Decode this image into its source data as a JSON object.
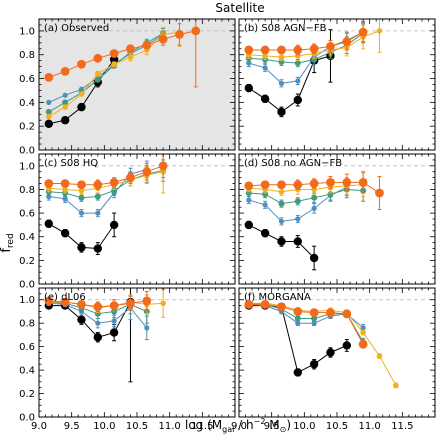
{
  "figure": {
    "title": "Satellite",
    "ylabel": "f",
    "ylabel_sub": "red",
    "xlabel_text": "log (M",
    "xlabel_sub": "gal",
    "xlabel_rest": " / h",
    "xlabel_sup": "−2",
    "xlabel_unit": " M",
    "xlabel_sun": "⊙",
    "xlabel_close": ")"
  },
  "colors": {
    "black": "#000000",
    "blue": "#4f8fbf",
    "green": "#3f9a83",
    "yellow": "#f2b01e",
    "orange": "#f26a1b",
    "shade": "#e5e5e5",
    "ref_line": "#b8b8b8"
  },
  "chart_data": [
    {
      "type": "line",
      "panel_label": "(a) Observed",
      "shaded": true,
      "xlim": [
        9.0,
        12.0
      ],
      "ylim": [
        0.0,
        1.1
      ],
      "x_ticks": [
        "9.0",
        "9.5",
        "10.0",
        "10.5",
        "11.0",
        "11.5"
      ],
      "y_ticks": [
        "0.0",
        "0.2",
        "0.4",
        "0.6",
        "0.8",
        "1.0"
      ],
      "series": [
        {
          "color": "black",
          "x": [
            9.15,
            9.4,
            9.65,
            9.9,
            10.15
          ],
          "y": [
            0.22,
            0.25,
            0.36,
            0.57,
            0.76
          ],
          "err": [
            0.02,
            0.02,
            0.02,
            0.04,
            0.07
          ]
        },
        {
          "color": "blue",
          "x": [
            9.15,
            9.4,
            9.65,
            9.9,
            10.15,
            10.4,
            10.65,
            10.9
          ],
          "y": [
            0.4,
            0.46,
            0.51,
            0.61,
            0.72,
            0.81,
            0.88,
            0.97
          ],
          "err": [
            0.01,
            0.01,
            0.01,
            0.01,
            0.01,
            0.02,
            0.03,
            0.05
          ]
        },
        {
          "color": "green",
          "x": [
            9.15,
            9.4,
            9.65,
            9.9,
            10.15,
            10.4,
            10.65,
            10.9
          ],
          "y": [
            0.32,
            0.4,
            0.48,
            0.59,
            0.71,
            0.82,
            0.9,
            0.98
          ],
          "err": [
            0.01,
            0.01,
            0.01,
            0.01,
            0.01,
            0.02,
            0.03,
            0.04
          ]
        },
        {
          "color": "yellow",
          "x": [
            9.15,
            9.4,
            9.65,
            9.9,
            10.15,
            10.4,
            10.65,
            10.9,
            11.15
          ],
          "y": [
            0.28,
            0.36,
            0.47,
            0.64,
            0.72,
            0.78,
            0.84,
            0.97,
            0.99
          ],
          "err": [
            0.01,
            0.01,
            0.01,
            0.02,
            0.02,
            0.03,
            0.04,
            0.06,
            0.12
          ]
        },
        {
          "color": "orange",
          "x": [
            9.15,
            9.4,
            9.65,
            9.9,
            10.15,
            10.4,
            10.65,
            10.9,
            11.15,
            11.4
          ],
          "y": [
            0.61,
            0.66,
            0.72,
            0.77,
            0.81,
            0.85,
            0.88,
            0.93,
            0.97,
            1.0
          ],
          "err": [
            0.02,
            0.02,
            0.02,
            0.02,
            0.02,
            0.03,
            0.03,
            0.05,
            0.09,
            0.47
          ]
        }
      ]
    },
    {
      "type": "line",
      "panel_label": "(b) S08 AGN−FB",
      "shaded": false,
      "xlim": [
        9.0,
        12.0
      ],
      "ylim": [
        0.0,
        1.1
      ],
      "x_ticks": [
        "9.0",
        "9.5",
        "10.0",
        "10.5",
        "11.0",
        "11.5"
      ],
      "y_ticks": [
        "0.0",
        "0.2",
        "0.4",
        "0.6",
        "0.8",
        "1.0"
      ],
      "series": [
        {
          "color": "black",
          "x": [
            9.15,
            9.4,
            9.65,
            9.9,
            10.15,
            10.4
          ],
          "y": [
            0.52,
            0.43,
            0.32,
            0.42,
            0.75,
            0.79
          ],
          "err": [
            0.03,
            0.03,
            0.04,
            0.05,
            0.1,
            0.22
          ]
        },
        {
          "color": "blue",
          "x": [
            9.15,
            9.4,
            9.65,
            9.9,
            10.15,
            10.4,
            10.65,
            10.9
          ],
          "y": [
            0.73,
            0.69,
            0.56,
            0.58,
            0.78,
            0.87,
            0.92,
            0.99
          ],
          "err": [
            0.03,
            0.03,
            0.03,
            0.03,
            0.04,
            0.05,
            0.07,
            0.08
          ]
        },
        {
          "color": "green",
          "x": [
            9.15,
            9.4,
            9.65,
            9.9,
            10.15,
            10.4,
            10.65,
            10.9
          ],
          "y": [
            0.77,
            0.76,
            0.74,
            0.73,
            0.76,
            0.82,
            0.88,
            0.98
          ],
          "err": [
            0.03,
            0.03,
            0.03,
            0.03,
            0.04,
            0.05,
            0.07,
            0.08
          ]
        },
        {
          "color": "yellow",
          "x": [
            9.15,
            9.4,
            9.65,
            9.9,
            10.15,
            10.4,
            10.65,
            10.9,
            11.15
          ],
          "y": [
            0.8,
            0.79,
            0.78,
            0.79,
            0.81,
            0.84,
            0.86,
            0.95,
            1.0
          ],
          "err": [
            0.03,
            0.03,
            0.03,
            0.04,
            0.04,
            0.05,
            0.07,
            0.1,
            0.18
          ]
        },
        {
          "color": "orange",
          "x": [
            9.15,
            9.4,
            9.65,
            9.9,
            10.15,
            10.4,
            10.65,
            10.9
          ],
          "y": [
            0.84,
            0.84,
            0.84,
            0.84,
            0.85,
            0.87,
            0.91,
            0.99
          ],
          "err": [
            0.03,
            0.03,
            0.03,
            0.04,
            0.04,
            0.05,
            0.07,
            0.09
          ]
        }
      ]
    },
    {
      "type": "line",
      "panel_label": "(c) S08 HQ",
      "shaded": false,
      "xlim": [
        9.0,
        12.0
      ],
      "ylim": [
        0.0,
        1.1
      ],
      "x_ticks": [
        "9.0",
        "9.5",
        "10.0",
        "10.5",
        "11.0",
        "11.5"
      ],
      "y_ticks": [
        "0.0",
        "0.2",
        "0.4",
        "0.6",
        "0.8",
        "1.0"
      ],
      "series": [
        {
          "color": "black",
          "x": [
            9.15,
            9.4,
            9.65,
            9.9,
            10.15
          ],
          "y": [
            0.51,
            0.43,
            0.31,
            0.3,
            0.5
          ],
          "err": [
            0.03,
            0.03,
            0.04,
            0.05,
            0.1
          ]
        },
        {
          "color": "blue",
          "x": [
            9.15,
            9.4,
            9.65,
            9.9,
            10.15,
            10.4,
            10.65
          ],
          "y": [
            0.74,
            0.72,
            0.6,
            0.6,
            0.77,
            0.93,
            0.97
          ],
          "err": [
            0.03,
            0.03,
            0.03,
            0.03,
            0.04,
            0.05,
            0.07
          ]
        },
        {
          "color": "green",
          "x": [
            9.15,
            9.4,
            9.65,
            9.9,
            10.15,
            10.4,
            10.65,
            10.9
          ],
          "y": [
            0.78,
            0.77,
            0.73,
            0.74,
            0.79,
            0.88,
            0.93,
            0.96
          ],
          "err": [
            0.03,
            0.03,
            0.03,
            0.03,
            0.04,
            0.05,
            0.07,
            0.09
          ]
        },
        {
          "color": "yellow",
          "x": [
            9.15,
            9.4,
            9.65,
            9.9,
            10.15,
            10.4,
            10.65,
            10.9
          ],
          "y": [
            0.81,
            0.8,
            0.79,
            0.81,
            0.84,
            0.88,
            0.92,
            0.95
          ],
          "err": [
            0.03,
            0.03,
            0.03,
            0.04,
            0.04,
            0.05,
            0.07,
            0.18
          ]
        },
        {
          "color": "orange",
          "x": [
            9.15,
            9.4,
            9.65,
            9.9,
            10.15,
            10.4,
            10.65,
            10.9
          ],
          "y": [
            0.85,
            0.85,
            0.84,
            0.84,
            0.86,
            0.9,
            0.95,
            1.0
          ],
          "err": [
            0.03,
            0.03,
            0.03,
            0.04,
            0.04,
            0.05,
            0.07,
            0.1
          ]
        }
      ]
    },
    {
      "type": "line",
      "panel_label": "(d) S08 no AGN−FB",
      "shaded": false,
      "xlim": [
        9.0,
        12.0
      ],
      "ylim": [
        0.0,
        1.1
      ],
      "x_ticks": [
        "9.0",
        "9.5",
        "10.0",
        "10.5",
        "11.0",
        "11.5"
      ],
      "y_ticks": [
        "0.0",
        "0.2",
        "0.4",
        "0.6",
        "0.8",
        "1.0"
      ],
      "series": [
        {
          "color": "black",
          "x": [
            9.15,
            9.4,
            9.65,
            9.9,
            10.15
          ],
          "y": [
            0.5,
            0.43,
            0.36,
            0.36,
            0.22
          ],
          "err": [
            0.03,
            0.03,
            0.04,
            0.05,
            0.1
          ]
        },
        {
          "color": "blue",
          "x": [
            9.15,
            9.4,
            9.65,
            9.9,
            10.15,
            10.4,
            10.65
          ],
          "y": [
            0.71,
            0.67,
            0.53,
            0.55,
            0.64,
            0.75,
            0.82
          ],
          "err": [
            0.03,
            0.03,
            0.03,
            0.03,
            0.04,
            0.05,
            0.07
          ]
        },
        {
          "color": "green",
          "x": [
            9.15,
            9.4,
            9.65,
            9.9,
            10.15,
            10.4,
            10.65,
            10.9
          ],
          "y": [
            0.77,
            0.76,
            0.68,
            0.7,
            0.73,
            0.76,
            0.8,
            0.79
          ],
          "err": [
            0.03,
            0.03,
            0.03,
            0.03,
            0.04,
            0.05,
            0.07,
            0.09
          ]
        },
        {
          "color": "yellow",
          "x": [
            9.15,
            9.4,
            9.65,
            9.9,
            10.15,
            10.4,
            10.65,
            10.9
          ],
          "y": [
            0.81,
            0.8,
            0.78,
            0.8,
            0.8,
            0.82,
            0.83,
            0.84
          ],
          "err": [
            0.03,
            0.03,
            0.03,
            0.04,
            0.04,
            0.05,
            0.07,
            0.1
          ]
        },
        {
          "color": "orange",
          "x": [
            9.15,
            9.4,
            9.65,
            9.9,
            10.15,
            10.4,
            10.65,
            10.9,
            11.15
          ],
          "y": [
            0.83,
            0.84,
            0.84,
            0.84,
            0.85,
            0.86,
            0.86,
            0.86,
            0.77
          ],
          "err": [
            0.03,
            0.03,
            0.03,
            0.04,
            0.04,
            0.05,
            0.07,
            0.09,
            0.14
          ]
        }
      ]
    },
    {
      "type": "line",
      "panel_label": "(e) dL06",
      "shaded": false,
      "xlim": [
        9.0,
        12.0
      ],
      "ylim": [
        0.0,
        1.1
      ],
      "x_ticks": [
        "9.0",
        "9.5",
        "10.0",
        "10.5",
        "11.0",
        "11.5"
      ],
      "y_ticks": [
        "0.0",
        "0.2",
        "0.4",
        "0.6",
        "0.8",
        "1.0"
      ],
      "series": [
        {
          "color": "black",
          "x": [
            9.15,
            9.4,
            9.65,
            9.9,
            10.15,
            10.4
          ],
          "y": [
            0.95,
            0.95,
            0.83,
            0.68,
            0.72,
            0.98
          ],
          "err": [
            0.02,
            0.02,
            0.04,
            0.04,
            0.07,
            0.68
          ]
        },
        {
          "color": "blue",
          "x": [
            9.15,
            9.4,
            9.65,
            9.9,
            10.15,
            10.4,
            10.65
          ],
          "y": [
            0.97,
            0.96,
            0.9,
            0.8,
            0.82,
            0.93,
            0.76
          ],
          "err": [
            0.02,
            0.02,
            0.03,
            0.04,
            0.05,
            0.1,
            0.1
          ]
        },
        {
          "color": "green",
          "x": [
            9.15,
            9.4,
            9.65,
            9.9,
            10.15,
            10.4,
            10.65
          ],
          "y": [
            0.98,
            0.97,
            0.93,
            0.88,
            0.9,
            0.96,
            0.9
          ],
          "err": [
            0.02,
            0.02,
            0.03,
            0.04,
            0.05,
            0.08,
            0.1
          ]
        },
        {
          "color": "yellow",
          "x": [
            9.15,
            9.4,
            9.65,
            9.9,
            10.15,
            10.4,
            10.65,
            10.9
          ],
          "y": [
            0.98,
            0.98,
            0.96,
            0.93,
            0.95,
            0.98,
            0.96,
            0.97
          ],
          "err": [
            0.02,
            0.02,
            0.03,
            0.04,
            0.05,
            0.06,
            0.08,
            0.12
          ]
        },
        {
          "color": "orange",
          "x": [
            9.15,
            9.4,
            9.65,
            9.9,
            10.15,
            10.4,
            10.65
          ],
          "y": [
            0.99,
            0.98,
            0.96,
            0.94,
            0.95,
            0.97,
            0.99
          ],
          "err": [
            0.02,
            0.02,
            0.03,
            0.04,
            0.05,
            0.06,
            0.08
          ]
        }
      ]
    },
    {
      "type": "line",
      "panel_label": "(f) MORGANA",
      "shaded": false,
      "xlim": [
        9.0,
        12.0
      ],
      "ylim": [
        0.0,
        1.1
      ],
      "x_ticks": [
        "9.0",
        "9.5",
        "10.0",
        "10.5",
        "11.0",
        "11.5"
      ],
      "y_ticks": [
        "0.0",
        "0.2",
        "0.4",
        "0.6",
        "0.8",
        "1.0"
      ],
      "series": [
        {
          "color": "black",
          "x": [
            9.15,
            9.4,
            9.65,
            9.9,
            10.15,
            10.4,
            10.65
          ],
          "y": [
            0.95,
            0.95,
            0.94,
            0.38,
            0.45,
            0.55,
            0.61
          ],
          "err": [
            0.02,
            0.02,
            0.02,
            0.03,
            0.04,
            0.04,
            0.05
          ]
        },
        {
          "color": "blue",
          "x": [
            9.15,
            9.4,
            9.65,
            9.9,
            10.15,
            10.4,
            10.65,
            10.9
          ],
          "y": [
            0.96,
            0.95,
            0.9,
            0.8,
            0.8,
            0.86,
            0.88,
            0.76
          ],
          "err": [
            0.01,
            0.01,
            0.02,
            0.02,
            0.02,
            0.02,
            0.03,
            0.03
          ]
        },
        {
          "color": "green",
          "x": [
            9.15,
            9.4,
            9.65,
            9.9,
            10.15,
            10.4,
            10.65,
            10.9
          ],
          "y": [
            0.97,
            0.96,
            0.92,
            0.84,
            0.84,
            0.88,
            0.88,
            0.64
          ],
          "err": [
            0.01,
            0.01,
            0.02,
            0.02,
            0.02,
            0.02,
            0.03,
            0.03
          ]
        },
        {
          "color": "yellow",
          "x": [
            9.15,
            9.4,
            9.65,
            9.9,
            10.15,
            10.4,
            10.65,
            10.9,
            11.15,
            11.4
          ],
          "y": [
            0.97,
            0.97,
            0.95,
            0.91,
            0.9,
            0.91,
            0.89,
            0.72,
            0.52,
            0.27
          ],
          "err": [
            0.01,
            0.01,
            0.01,
            0.01,
            0.02,
            0.02,
            0.02,
            0.02,
            0.02,
            0.02
          ]
        },
        {
          "color": "orange",
          "x": [
            9.15,
            9.4,
            9.65,
            9.9,
            10.15,
            10.4,
            10.65,
            10.9
          ],
          "y": [
            0.96,
            0.96,
            0.94,
            0.9,
            0.89,
            0.89,
            0.88,
            0.62
          ],
          "err": [
            0.01,
            0.01,
            0.01,
            0.01,
            0.02,
            0.02,
            0.03,
            0.03
          ]
        }
      ]
    }
  ]
}
